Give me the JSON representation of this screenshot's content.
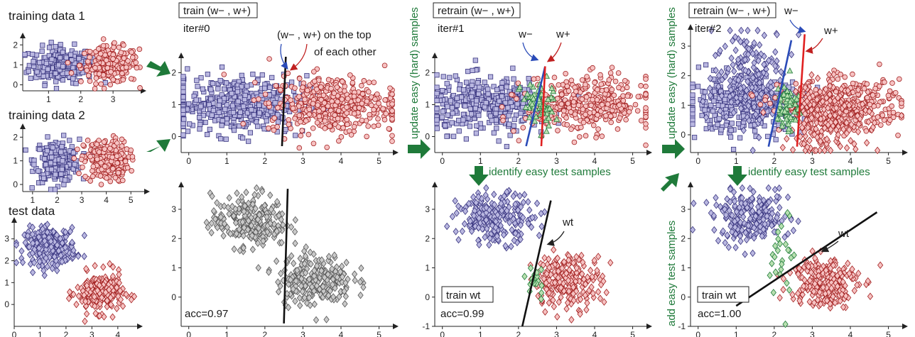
{
  "labels": {
    "training_data_1": "training data 1",
    "training_data_2": "training data 2",
    "test_data": "test data",
    "train_box": "train (w− , w+)",
    "retrain_box_1": "retrain (w− , w+)",
    "retrain_box_2": "retrain (w− , w+)",
    "iter0": "iter#0",
    "iter1": "iter#1",
    "iter2": "iter#2",
    "overlap_note_1": "(w− , w+)  on the top",
    "overlap_note_2": "of each other",
    "w_minus": "w−",
    "w_plus": "w+",
    "w_t": "wt",
    "update_easy_1": "update easy (hard) samples",
    "update_easy_2": "update easy (hard) samples",
    "identify_easy_1": "identify easy test samples",
    "identify_easy_2": "identify easy test samples",
    "add_easy_test": "add easy test samples",
    "train_wt_1": "train wt",
    "train_wt_2": "train wt",
    "acc_0": "acc=0.97",
    "acc_1": "acc=0.99",
    "acc_2": "acc=1.00"
  },
  "colors": {
    "class_neg_fill": "#b9b7e0",
    "class_neg_stroke": "#3a3680",
    "class_pos_fill": "#f6c2c2",
    "class_pos_stroke": "#a32020",
    "easy_fill": "#b8e0b0",
    "easy_stroke": "#1f7a3a",
    "unlabeled_fill": "#c9c9c9",
    "unlabeled_stroke": "#555555",
    "w_minus_line": "#2a4bb8",
    "w_plus_line": "#e02020",
    "w_t_line": "#111111",
    "arrow_green": "#1f7a3a"
  },
  "chart_data": [
    {
      "id": "training-data-1",
      "type": "scatter",
      "xticks": [
        "1",
        "2",
        "3"
      ],
      "yticks": [
        "0",
        "1",
        "2"
      ],
      "xlim": [
        0.2,
        3.9
      ],
      "ylim": [
        -0.3,
        2.4
      ],
      "series": [
        {
          "marker": "square",
          "class": "negative",
          "center": [
            1.4,
            1.0
          ],
          "spread": [
            0.5,
            0.45
          ],
          "count": 220
        },
        {
          "marker": "circle",
          "class": "positive",
          "center": [
            2.9,
            1.0
          ],
          "spread": [
            0.45,
            0.45
          ],
          "count": 220
        }
      ]
    },
    {
      "id": "training-data-2",
      "type": "scatter",
      "xticks": [
        "1",
        "2",
        "3",
        "4",
        "5"
      ],
      "yticks": [
        "0",
        "1",
        "2"
      ],
      "xlim": [
        0.6,
        5.6
      ],
      "ylim": [
        -0.3,
        2.4
      ],
      "series": [
        {
          "marker": "square",
          "class": "negative",
          "center": [
            2.0,
            1.0
          ],
          "spread": [
            0.45,
            0.45
          ],
          "count": 230
        },
        {
          "marker": "circle",
          "class": "positive",
          "center": [
            4.0,
            1.0
          ],
          "spread": [
            0.45,
            0.45
          ],
          "count": 230
        }
      ]
    },
    {
      "id": "test-data",
      "type": "scatter",
      "xticks": [
        "0",
        "1",
        "2",
        "3",
        "4"
      ],
      "yticks": [
        "0",
        "1",
        "2",
        "3"
      ],
      "xlim": [
        0,
        4.8
      ],
      "ylim": [
        -1,
        3.8
      ],
      "series": [
        {
          "marker": "diamond",
          "class": "negative",
          "center": [
            1.4,
            2.65
          ],
          "spread": [
            0.5,
            0.42
          ],
          "count": 230
        },
        {
          "marker": "diamond",
          "class": "positive",
          "center": [
            3.3,
            0.55
          ],
          "spread": [
            0.45,
            0.45
          ],
          "count": 230
        }
      ]
    },
    {
      "id": "iter0-train",
      "type": "scatter",
      "xticks": [
        "0",
        "1",
        "2",
        "3",
        "4",
        "5"
      ],
      "yticks": [
        "0",
        "1",
        "2"
      ],
      "xlim": [
        -0.2,
        5.4
      ],
      "ylim": [
        -0.5,
        2.5
      ],
      "series": [
        {
          "marker": "square",
          "class": "negative",
          "center": [
            1.3,
            1.0
          ],
          "spread": [
            0.9,
            0.45
          ],
          "count": 420
        },
        {
          "marker": "circle",
          "class": "positive",
          "center": [
            3.8,
            1.0
          ],
          "spread": [
            0.85,
            0.45
          ],
          "count": 420
        }
      ],
      "lines": [
        {
          "role": "w_overlap",
          "from": [
            2.45,
            -0.3
          ],
          "to": [
            2.55,
            2.5
          ]
        }
      ]
    },
    {
      "id": "iter0-test",
      "type": "scatter",
      "xticks": [
        "0",
        "1",
        "2",
        "3",
        "4",
        "5"
      ],
      "yticks": [
        "0",
        "1",
        "2",
        "3"
      ],
      "xlim": [
        -0.2,
        5.4
      ],
      "ylim": [
        -1,
        3.8
      ],
      "series": [
        {
          "marker": "diamond",
          "class": "unlabeled",
          "center": [
            1.6,
            2.6
          ],
          "spread": [
            0.5,
            0.45
          ],
          "count": 230
        },
        {
          "marker": "diamond",
          "class": "unlabeled",
          "center": [
            3.3,
            0.6
          ],
          "spread": [
            0.5,
            0.45
          ],
          "count": 230
        }
      ],
      "lines": [
        {
          "role": "w_t",
          "from": [
            2.5,
            -0.9
          ],
          "to": [
            2.6,
            3.7
          ]
        }
      ]
    },
    {
      "id": "iter1-retrain",
      "type": "scatter",
      "xticks": [
        "0",
        "1",
        "2",
        "3",
        "4",
        "5"
      ],
      "yticks": [
        "0",
        "1",
        "2"
      ],
      "xlim": [
        -0.2,
        5.4
      ],
      "ylim": [
        -0.5,
        2.5
      ],
      "series": [
        {
          "marker": "square",
          "class": "negative",
          "center": [
            1.2,
            1.0
          ],
          "spread": [
            0.8,
            0.42
          ],
          "count": 380
        },
        {
          "marker": "circle",
          "class": "positive",
          "center": [
            3.8,
            1.0
          ],
          "spread": [
            0.8,
            0.42
          ],
          "count": 380
        },
        {
          "marker": "triangle",
          "class": "easy",
          "center": [
            2.5,
            1.0
          ],
          "spread": [
            0.22,
            0.4
          ],
          "count": 60
        }
      ],
      "lines": [
        {
          "role": "w_minus",
          "from": [
            2.2,
            -0.3
          ],
          "to": [
            2.7,
            2.2
          ]
        },
        {
          "role": "w_plus",
          "from": [
            2.6,
            -0.3
          ],
          "to": [
            2.7,
            2.2
          ]
        }
      ]
    },
    {
      "id": "iter1-test",
      "type": "scatter",
      "xticks": [
        "0",
        "1",
        "2",
        "3",
        "4",
        "5"
      ],
      "yticks": [
        "-1",
        "0",
        "1",
        "2",
        "3"
      ],
      "xlim": [
        -0.2,
        5.4
      ],
      "ylim": [
        -1,
        3.8
      ],
      "series": [
        {
          "marker": "diamond",
          "class": "negative",
          "center": [
            1.4,
            2.7
          ],
          "spread": [
            0.5,
            0.42
          ],
          "count": 220
        },
        {
          "marker": "diamond",
          "class": "positive",
          "center": [
            3.3,
            0.55
          ],
          "spread": [
            0.45,
            0.45
          ],
          "count": 220
        },
        {
          "marker": "diamond",
          "class": "easy",
          "center": [
            2.45,
            0.6
          ],
          "spread": [
            0.12,
            0.35
          ],
          "count": 18
        }
      ],
      "lines": [
        {
          "role": "w_t",
          "from": [
            2.1,
            -1
          ],
          "to": [
            2.85,
            3.3
          ]
        }
      ]
    },
    {
      "id": "iter2-retrain",
      "type": "scatter",
      "xticks": [
        "0",
        "1",
        "2",
        "3",
        "4",
        "5"
      ],
      "yticks": [
        "0",
        "1",
        "2",
        "3"
      ],
      "xlim": [
        -0.2,
        5.4
      ],
      "ylim": [
        -0.6,
        3.6
      ],
      "series": [
        {
          "marker": "square",
          "class": "negative",
          "center": [
            1.2,
            1.0
          ],
          "spread": [
            0.8,
            0.45
          ],
          "count": 360
        },
        {
          "marker": "diamond",
          "class": "negative",
          "center": [
            1.4,
            2.0
          ],
          "spread": [
            0.5,
            0.8
          ],
          "count": 200
        },
        {
          "marker": "circle",
          "class": "positive",
          "center": [
            3.8,
            1.0
          ],
          "spread": [
            0.8,
            0.42
          ],
          "count": 320
        },
        {
          "marker": "diamond",
          "class": "positive",
          "center": [
            3.4,
            0.6
          ],
          "spread": [
            0.55,
            0.6
          ],
          "count": 260
        },
        {
          "marker": "triangle",
          "class": "easy",
          "center": [
            2.35,
            1.0
          ],
          "spread": [
            0.15,
            0.45
          ],
          "count": 60
        }
      ],
      "lines": [
        {
          "role": "w_minus",
          "from": [
            1.85,
            -0.4
          ],
          "to": [
            2.45,
            3.2
          ]
        },
        {
          "role": "w_plus",
          "from": [
            2.6,
            -0.4
          ],
          "to": [
            2.8,
            3.4
          ]
        }
      ]
    },
    {
      "id": "iter2-test",
      "type": "scatter",
      "xticks": [
        "0",
        "1",
        "2",
        "3",
        "4",
        "5"
      ],
      "yticks": [
        "-1",
        "0",
        "1",
        "2",
        "3"
      ],
      "xlim": [
        -0.2,
        5.4
      ],
      "ylim": [
        -1,
        3.8
      ],
      "series": [
        {
          "marker": "diamond",
          "class": "negative",
          "center": [
            1.4,
            2.7
          ],
          "spread": [
            0.5,
            0.42
          ],
          "count": 220
        },
        {
          "marker": "diamond",
          "class": "positive",
          "center": [
            3.3,
            0.55
          ],
          "spread": [
            0.45,
            0.45
          ],
          "count": 220
        },
        {
          "marker": "diamond",
          "class": "easy",
          "center": [
            2.2,
            1.2
          ],
          "spread": [
            0.15,
            0.9
          ],
          "count": 26
        }
      ],
      "lines": [
        {
          "role": "w_t",
          "from": [
            1.0,
            -0.3
          ],
          "to": [
            4.7,
            2.9
          ]
        }
      ]
    }
  ]
}
